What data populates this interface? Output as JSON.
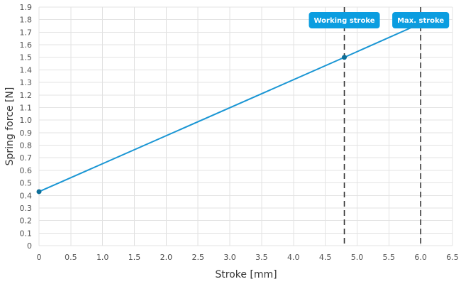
{
  "chart_data": {
    "type": "line",
    "xlabel": "Stroke [mm]",
    "ylabel": "Spring force [N]",
    "xlim": [
      0,
      6.5
    ],
    "ylim": [
      0,
      1.9
    ],
    "x_ticks": [
      "0",
      "0.5",
      "1.0",
      "1.5",
      "2.0",
      "2.5",
      "3.0",
      "3.5",
      "4.0",
      "4.5",
      "5.0",
      "5.5",
      "6.0",
      "6.5"
    ],
    "y_ticks": [
      "0",
      "0.1",
      "0.2",
      "0.3",
      "0.4",
      "0.5",
      "0.6",
      "0.7",
      "0.8",
      "0.9",
      "1.0",
      "1.1",
      "1.2",
      "1.3",
      "1.4",
      "1.5",
      "1.6",
      "1.7",
      "1.8",
      "1.9"
    ],
    "grid": true,
    "legend": "none",
    "series": [
      {
        "color": "#1a96d4",
        "points": [
          {
            "x": 0,
            "y": 0.43
          },
          {
            "x": 4.8,
            "y": 1.5
          },
          {
            "x": 6.0,
            "y": 1.77
          }
        ],
        "markers": [
          {
            "x": 0,
            "y": 0.43
          },
          {
            "x": 4.8,
            "y": 1.5
          }
        ]
      }
    ],
    "vertical_markers": [
      {
        "x": 4.8,
        "label": "Working stroke"
      },
      {
        "x": 6.0,
        "label": "Max. stroke"
      }
    ]
  },
  "colors": {
    "line": "#1a96d4",
    "marker_point": "#0e6f99",
    "badge": "#0b9de0",
    "dashed": "#333333",
    "grid": "#e3e3e3"
  }
}
